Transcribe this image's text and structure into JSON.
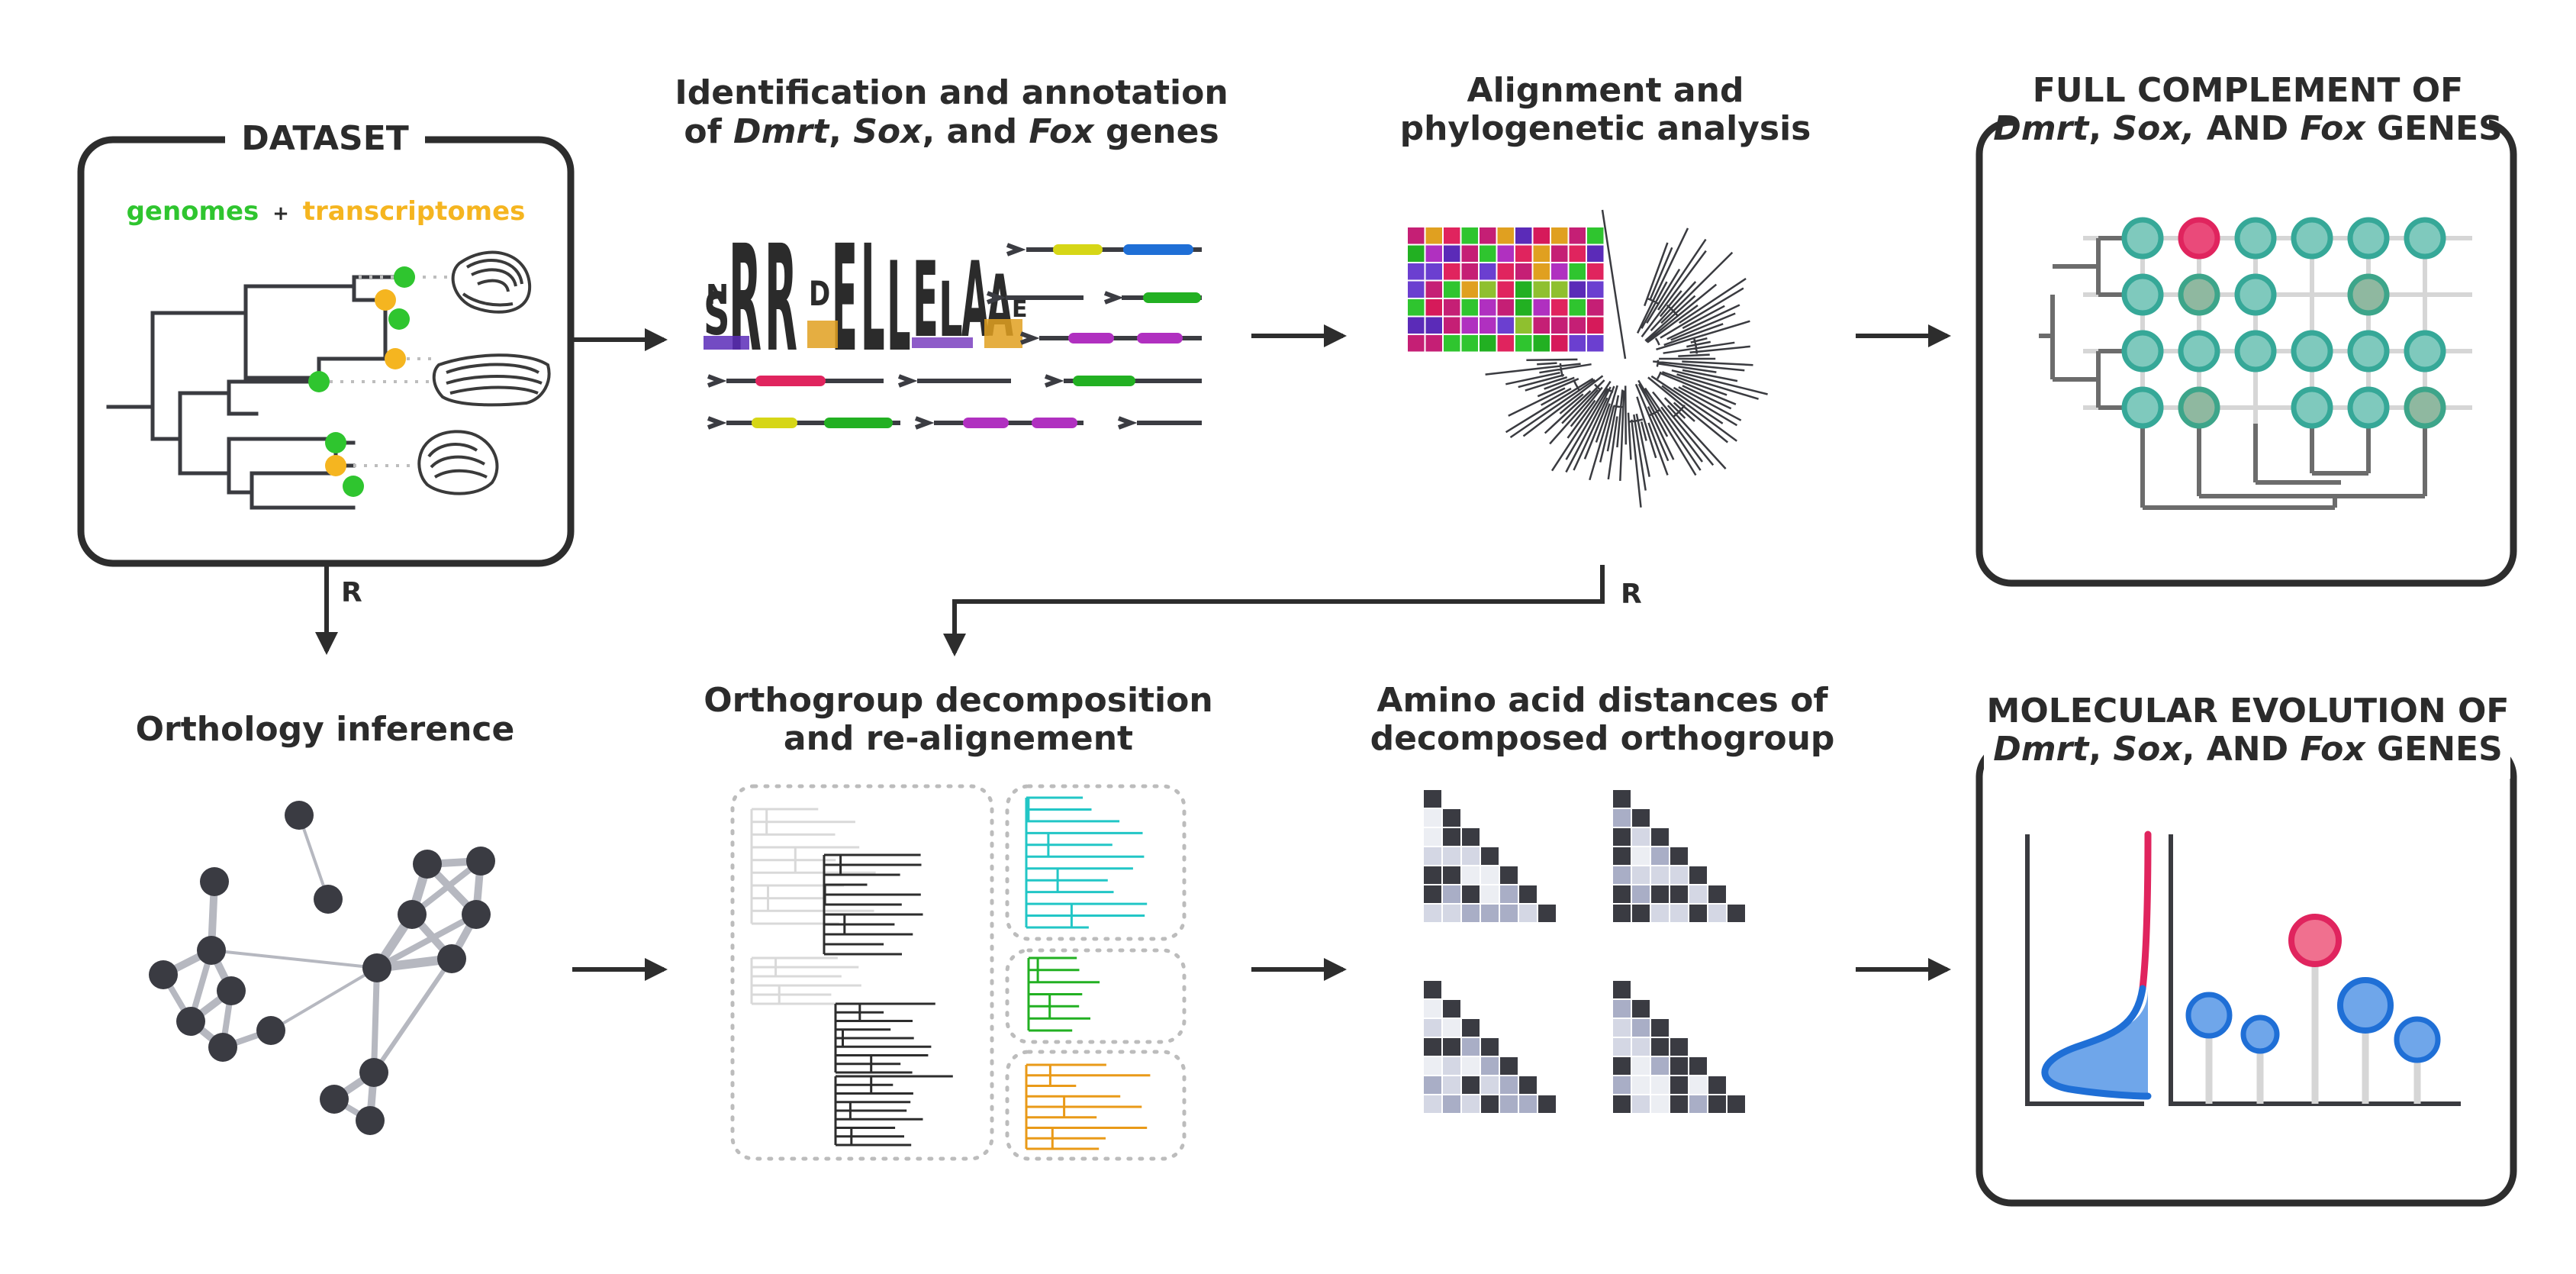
{
  "colors": {
    "green": "#2fc52f",
    "yellow": "#f5b520",
    "dark": "#2d2d2d",
    "teal": "#7fc9bd",
    "teal_stroke": "#36a898",
    "sage": "#8fb8a0",
    "crimson": "#e0245e",
    "blue": "#1f6fd6",
    "light_blue": "#6fa6ea"
  },
  "panels": {
    "dataset": {
      "title": "DATASET",
      "genomes_label": "genomes",
      "plus": "+",
      "transcriptomes_label": "transcriptomes"
    },
    "identification": {
      "title_line1": "Identification and annotation",
      "title_of": "of ",
      "gene1": "Dmrt",
      "sep1": ", ",
      "gene2": "Sox",
      "sep2": ", and ",
      "gene3": "Fox",
      "title_end": " genes"
    },
    "alignment": {
      "title_line1": "Alignment and",
      "title_line2": "phylogenetic analysis"
    },
    "complement": {
      "title_line1": "FULL COMPLEMENT OF",
      "gene1": "Dmrt",
      "sep1": ", ",
      "gene2": "Sox,",
      "sep2": " AND ",
      "gene3": "Fox",
      "title_end": " GENES"
    },
    "orthology": {
      "title": "Orthology inference"
    },
    "decomposition": {
      "title_line1": "Orthogroup decomposition",
      "title_line2": "and re-alignement"
    },
    "distances": {
      "title_line1": "Amino acid distances of",
      "title_line2": "decomposed orthogroup"
    },
    "evolution": {
      "title_line1": "MOLECULAR EVOLUTION OF",
      "gene1": "Dmrt",
      "sep1": ", ",
      "gene2": "Sox",
      "sep2": ", AND ",
      "gene3": "Fox",
      "title_end": " GENES"
    }
  },
  "arrows": {
    "dataset_to_orthology_label": "R",
    "alignment_to_decomposition_label": "R"
  },
  "logo": {
    "letters": [
      "N",
      "S",
      "R",
      "R",
      "D",
      "E",
      "L",
      "L",
      "E",
      "L",
      "A",
      "A",
      "E"
    ]
  }
}
